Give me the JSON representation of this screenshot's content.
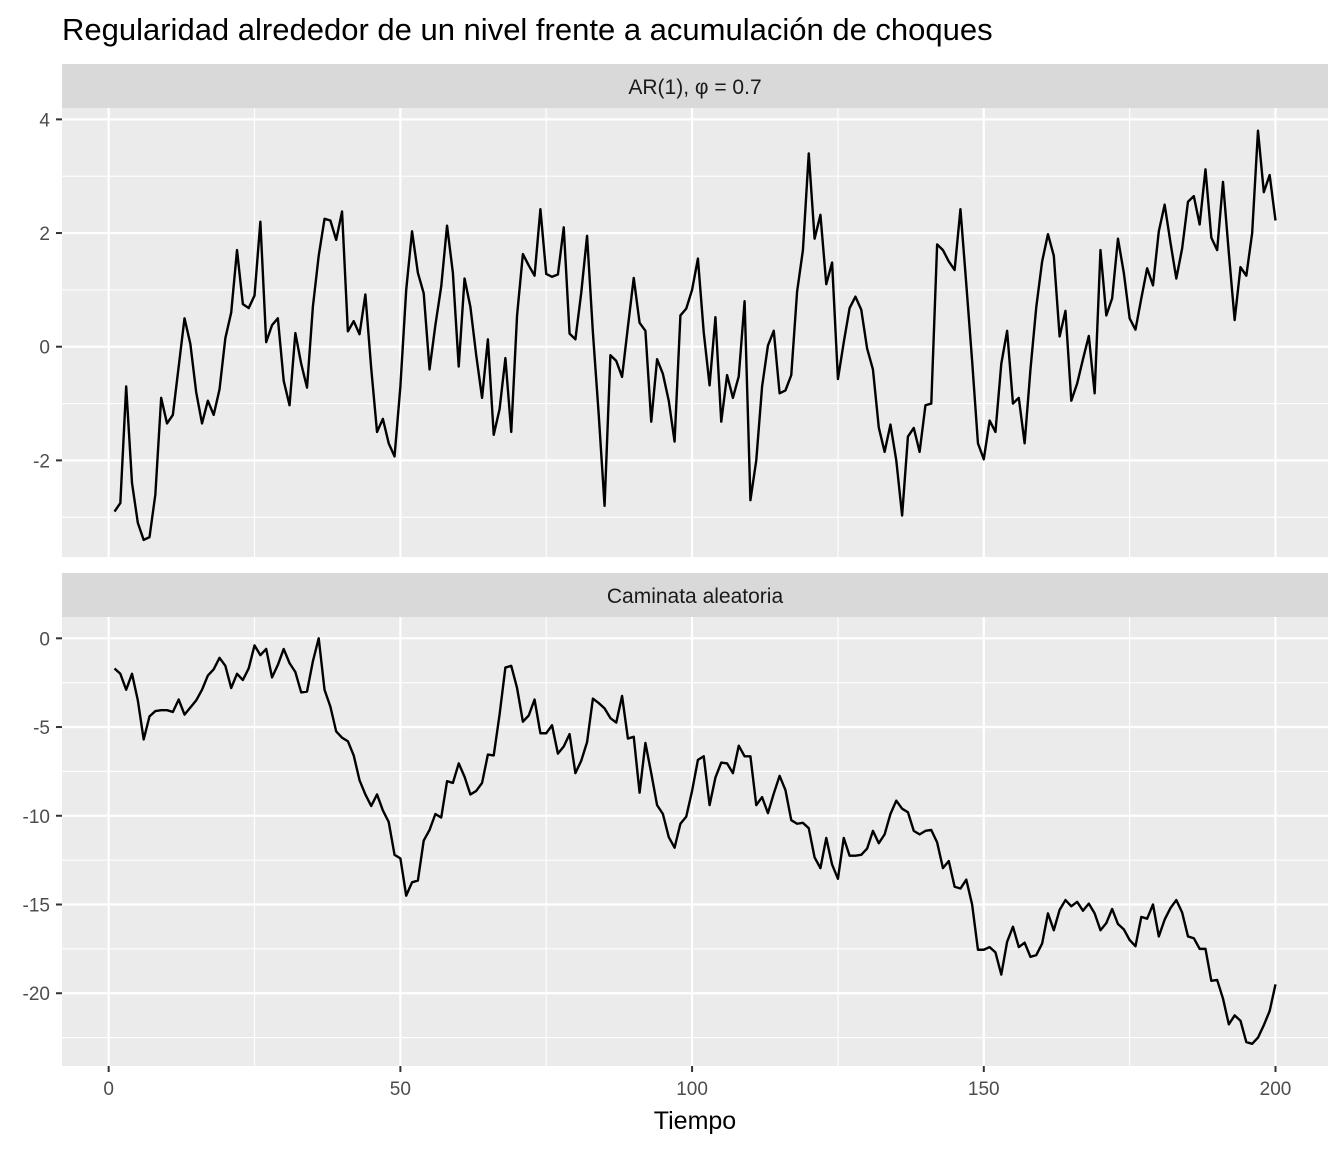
{
  "chart_data": {
    "type": "line",
    "title": "Regularidad alrededor de un nivel frente a acumulación de choques",
    "xlabel": "Tiempo",
    "xlim": [
      -8,
      209
    ],
    "x_ticks": [
      0,
      50,
      100,
      150,
      200
    ],
    "x_tick_labels": [
      "0",
      "50",
      "100",
      "150",
      "200"
    ],
    "grid": true,
    "panels": [
      {
        "strip": "AR(1), φ = 0.7",
        "ylim": [
          -3.7,
          4.2
        ],
        "y_ticks": [
          4,
          2,
          0,
          -2
        ],
        "y_tick_labels": [
          "4",
          "2",
          "0",
          "-2"
        ],
        "y_minor": [
          3,
          1,
          -1,
          -3
        ],
        "series": [
          {
            "values": [
              -2.9,
              -2.75,
              -0.7,
              -2.4,
              -3.1,
              -3.4,
              -3.35,
              -2.6,
              -0.9,
              -1.35,
              -1.2,
              -0.35,
              0.5,
              0.05,
              -0.8,
              -1.35,
              -0.95,
              -1.2,
              -0.75,
              0.15,
              0.6,
              1.7,
              0.75,
              0.68,
              0.9,
              2.2,
              0.08,
              0.38,
              0.5,
              -0.6,
              -1.03,
              0.24,
              -0.3,
              -0.72,
              0.7,
              1.6,
              2.25,
              2.22,
              1.88,
              2.38,
              0.27,
              0.45,
              0.22,
              0.92,
              -0.38,
              -1.5,
              -1.27,
              -1.7,
              -1.93,
              -0.7,
              1.0,
              2.03,
              1.3,
              0.94,
              -0.4,
              0.38,
              1.06,
              2.13,
              1.3,
              -0.35,
              1.2,
              0.7,
              -0.15,
              -0.9,
              0.13,
              -1.55,
              -1.1,
              -0.2,
              -1.5,
              0.55,
              1.63,
              1.43,
              1.25,
              2.42,
              1.28,
              1.23,
              1.27,
              2.1,
              0.23,
              0.13,
              0.95,
              1.95,
              0.25,
              -1.2,
              -2.8,
              -0.15,
              -0.25,
              -0.53,
              0.35,
              1.21,
              0.42,
              0.28,
              -1.32,
              -0.22,
              -0.48,
              -0.95,
              -1.67,
              0.55,
              0.67,
              1.0,
              1.55,
              0.25,
              -0.68,
              0.52,
              -1.32,
              -0.5,
              -0.9,
              -0.52,
              0.8,
              -2.7,
              -2.0,
              -0.7,
              0.02,
              0.28,
              -0.82,
              -0.77,
              -0.5,
              0.97,
              1.7,
              3.4,
              1.9,
              2.32,
              1.1,
              1.48,
              -0.57,
              0.08,
              0.68,
              0.88,
              0.65,
              -0.03,
              -0.4,
              -1.42,
              -1.85,
              -1.37,
              -2.0,
              -2.97,
              -1.58,
              -1.43,
              -1.85,
              -1.03,
              -1.0,
              1.8,
              1.7,
              1.5,
              1.35,
              2.42,
              1.1,
              -0.25,
              -1.7,
              -1.98,
              -1.3,
              -1.5,
              -0.3,
              0.28,
              -1.0,
              -0.9,
              -1.7,
              -0.4,
              0.7,
              1.5,
              1.98,
              1.6,
              0.18,
              0.63,
              -0.95,
              -0.65,
              -0.22,
              0.19,
              -0.82,
              1.7,
              0.55,
              0.85,
              1.9,
              1.3,
              0.5,
              0.3,
              0.85,
              1.38,
              1.08,
              2.03,
              2.5,
              1.83,
              1.2,
              1.73,
              2.55,
              2.65,
              2.15,
              3.12,
              1.92,
              1.7,
              2.9,
              1.65,
              0.47,
              1.4,
              1.25,
              2.0,
              3.8,
              2.72,
              3.02,
              2.22
            ]
          }
        ]
      },
      {
        "strip": "Caminata aleatoria",
        "ylim": [
          -24.1,
          1.2
        ],
        "y_ticks": [
          0,
          -5,
          -10,
          -15,
          -20
        ],
        "y_tick_labels": [
          "0",
          "-5",
          "-10",
          "-15",
          "-20"
        ],
        "y_minor": [
          -2.5,
          -7.5,
          -12.5,
          -17.5,
          -22.5
        ],
        "series": [
          {
            "values": [
              -1.7,
              -2.0,
              -2.9,
              -2.0,
              -3.5,
              -5.7,
              -4.4,
              -4.1,
              -4.05,
              -4.05,
              -4.15,
              -3.45,
              -4.3,
              -3.9,
              -3.5,
              -2.9,
              -2.1,
              -1.75,
              -1.1,
              -1.55,
              -2.8,
              -2.0,
              -2.35,
              -1.7,
              -0.4,
              -0.95,
              -0.6,
              -2.2,
              -1.5,
              -0.6,
              -1.4,
              -1.9,
              -3.05,
              -3.0,
              -1.3,
              0.0,
              -2.9,
              -3.85,
              -5.25,
              -5.6,
              -5.8,
              -6.6,
              -8.0,
              -8.8,
              -9.45,
              -8.8,
              -9.7,
              -10.35,
              -12.2,
              -12.4,
              -14.5,
              -13.75,
              -13.65,
              -11.4,
              -10.8,
              -9.9,
              -10.1,
              -8.05,
              -8.15,
              -7.05,
              -7.8,
              -8.8,
              -8.6,
              -8.15,
              -6.55,
              -6.6,
              -4.3,
              -1.65,
              -1.55,
              -2.8,
              -4.7,
              -4.35,
              -3.45,
              -5.35,
              -5.35,
              -4.9,
              -6.5,
              -6.1,
              -5.4,
              -7.6,
              -6.9,
              -5.85,
              -3.4,
              -3.65,
              -3.95,
              -4.5,
              -4.75,
              -3.25,
              -5.65,
              -5.55,
              -8.7,
              -5.9,
              -7.6,
              -9.4,
              -9.9,
              -11.2,
              -11.8,
              -10.45,
              -10.05,
              -8.6,
              -6.85,
              -6.65,
              -9.4,
              -7.85,
              -7.0,
              -7.05,
              -7.6,
              -6.05,
              -6.65,
              -6.65,
              -9.4,
              -8.95,
              -9.85,
              -8.75,
              -7.75,
              -8.55,
              -10.25,
              -10.45,
              -10.4,
              -10.7,
              -12.35,
              -12.95,
              -11.25,
              -12.75,
              -13.55,
              -11.25,
              -12.25,
              -12.25,
              -12.2,
              -11.85,
              -10.85,
              -11.55,
              -11.05,
              -9.9,
              -9.15,
              -9.6,
              -9.8,
              -10.85,
              -11.05,
              -10.85,
              -10.8,
              -11.5,
              -12.95,
              -12.55,
              -14.0,
              -14.1,
              -13.6,
              -15.0,
              -17.55,
              -17.55,
              -17.4,
              -17.7,
              -18.95,
              -17.1,
              -16.25,
              -17.4,
              -17.15,
              -17.95,
              -17.85,
              -17.2,
              -15.5,
              -16.45,
              -15.3,
              -14.75,
              -15.1,
              -14.85,
              -15.35,
              -14.95,
              -15.5,
              -16.45,
              -16.05,
              -15.25,
              -16.1,
              -16.4,
              -17.0,
              -17.35,
              -15.7,
              -15.8,
              -15.0,
              -16.8,
              -15.85,
              -15.2,
              -14.75,
              -15.45,
              -16.8,
              -16.9,
              -17.5,
              -17.5,
              -19.3,
              -19.25,
              -20.3,
              -21.75,
              -21.25,
              -21.55,
              -22.75,
              -22.85,
              -22.5,
              -21.8,
              -21.0,
              -19.5
            ]
          }
        ]
      }
    ]
  }
}
